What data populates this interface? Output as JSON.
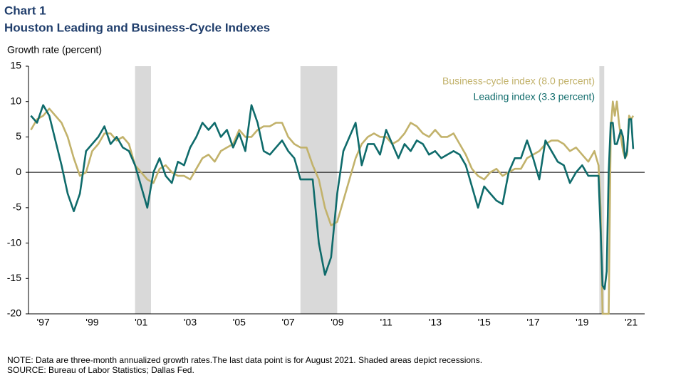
{
  "chart_data": {
    "type": "line",
    "title": "Chart 1",
    "subtitle": "Houston Leading and Business-Cycle Indexes",
    "y_label": "Growth rate (percent)",
    "note": "NOTE: Data are three-month annualized growth rates.The last data point is for August 2021. Shaded areas depict recessions.",
    "source": "SOURCE: Bureau of Labor Statistics; Dallas Fed.",
    "xlim": [
      1996.9,
      2022.05
    ],
    "xticks": [
      {
        "value": 1997.5,
        "label": "'97"
      },
      {
        "value": 1999.5,
        "label": "'99"
      },
      {
        "value": 2001.5,
        "label": "'01"
      },
      {
        "value": 2003.5,
        "label": "'03"
      },
      {
        "value": 2005.5,
        "label": "'05"
      },
      {
        "value": 2007.5,
        "label": "'07"
      },
      {
        "value": 2009.5,
        "label": "'09"
      },
      {
        "value": 2011.5,
        "label": "'11"
      },
      {
        "value": 2013.5,
        "label": "'13"
      },
      {
        "value": 2015.5,
        "label": "'15"
      },
      {
        "value": 2017.5,
        "label": "'17"
      },
      {
        "value": 2019.5,
        "label": "'19"
      },
      {
        "value": 2021.5,
        "label": "'21"
      }
    ],
    "ylim": [
      -20,
      15
    ],
    "yticks": [
      15,
      10,
      5,
      0,
      -5,
      -10,
      -15,
      -20
    ],
    "recessions": [
      [
        2001.25,
        2001.9
      ],
      [
        2008.0,
        2009.5
      ],
      [
        2020.2,
        2020.4
      ]
    ],
    "recession_color": "#d9d9d9",
    "x": [
      1997.0,
      1997.25,
      1997.5,
      1997.75,
      1998.0,
      1998.25,
      1998.5,
      1998.75,
      1999.0,
      1999.25,
      1999.5,
      1999.75,
      2000.0,
      2000.25,
      2000.5,
      2000.75,
      2001.0,
      2001.25,
      2001.5,
      2001.75,
      2002.0,
      2002.25,
      2002.5,
      2002.75,
      2003.0,
      2003.25,
      2003.5,
      2003.75,
      2004.0,
      2004.25,
      2004.5,
      2004.75,
      2005.0,
      2005.25,
      2005.5,
      2005.75,
      2006.0,
      2006.25,
      2006.5,
      2006.75,
      2007.0,
      2007.25,
      2007.5,
      2007.75,
      2008.0,
      2008.25,
      2008.5,
      2008.75,
      2009.0,
      2009.25,
      2009.5,
      2009.75,
      2010.0,
      2010.25,
      2010.5,
      2010.75,
      2011.0,
      2011.25,
      2011.5,
      2011.75,
      2012.0,
      2012.25,
      2012.5,
      2012.75,
      2013.0,
      2013.25,
      2013.5,
      2013.75,
      2014.0,
      2014.25,
      2014.5,
      2014.75,
      2015.0,
      2015.25,
      2015.5,
      2015.75,
      2016.0,
      2016.25,
      2016.5,
      2016.75,
      2017.0,
      2017.25,
      2017.5,
      2017.75,
      2018.0,
      2018.25,
      2018.5,
      2018.75,
      2019.0,
      2019.25,
      2019.5,
      2019.75,
      2020.0,
      2020.083,
      2020.167,
      2020.25,
      2020.333,
      2020.417,
      2020.5,
      2020.583,
      2020.667,
      2020.75,
      2020.833,
      2020.917,
      2021.0,
      2021.083,
      2021.167,
      2021.25,
      2021.333,
      2021.417,
      2021.5,
      2021.583
    ],
    "series": [
      {
        "name": "Business-cycle index (8.0 percent)",
        "color": "#c2b26b",
        "values": [
          6,
          7.5,
          8,
          9,
          8,
          7,
          5,
          2,
          -0.5,
          0,
          3,
          4,
          5.5,
          5.5,
          4.5,
          5,
          4,
          1,
          0,
          -1,
          -1.5,
          0.5,
          1,
          0,
          -0.5,
          -0.5,
          -1,
          0.5,
          2,
          2.5,
          1.5,
          3,
          3.5,
          4,
          6,
          5,
          5,
          6,
          6.5,
          6.5,
          7,
          7,
          5,
          4,
          3.5,
          3.5,
          1,
          -1,
          -5,
          -7.5,
          -7,
          -4,
          -1,
          2,
          4,
          5,
          5.5,
          5,
          5,
          4,
          4.5,
          5.5,
          7,
          6.5,
          5.5,
          5,
          6,
          5,
          5,
          5.5,
          4,
          2.5,
          0.5,
          -0.5,
          -1,
          0,
          0.5,
          -0.5,
          0,
          0.5,
          0.5,
          2,
          2.5,
          3,
          4,
          4.5,
          4.5,
          4,
          3,
          3.5,
          2.5,
          1.5,
          3,
          2,
          1,
          -5,
          -20,
          -20,
          -20,
          -20,
          6,
          10,
          8,
          10,
          7,
          5,
          3,
          2,
          2.5,
          8,
          7.5,
          8
        ]
      },
      {
        "name": "Leading index (3.3 percent)",
        "color": "#0f6b6b",
        "values": [
          8,
          7,
          9.5,
          8,
          4.5,
          1,
          -3,
          -5.5,
          -3,
          3,
          4,
          5,
          6.5,
          4,
          5,
          3.5,
          3,
          1,
          -2,
          -5,
          0,
          2,
          -0.5,
          -1.5,
          1.5,
          1,
          3.5,
          5,
          7,
          6,
          7,
          5,
          6,
          3.5,
          5.5,
          3,
          9.5,
          7,
          3,
          2.5,
          3.5,
          4.5,
          3,
          2,
          -1,
          -1,
          -1,
          -10,
          -14.5,
          -12,
          -3,
          3,
          5,
          7,
          1,
          4,
          4,
          2.5,
          6,
          4,
          2,
          4,
          3,
          4.5,
          4,
          2.5,
          3,
          2,
          2.5,
          3,
          2.5,
          1,
          -2,
          -5,
          -2,
          -3,
          -4,
          -4.5,
          0,
          2,
          2,
          4.5,
          2,
          -1,
          4.5,
          3,
          1.5,
          1,
          -1.5,
          0,
          1,
          -0.5,
          -0.5,
          -0.5,
          -0.5,
          -8,
          -16,
          -16.5,
          -14,
          0,
          7,
          7,
          4,
          4,
          5,
          6,
          5,
          2,
          3,
          7.5,
          7.5,
          3.3
        ]
      }
    ]
  }
}
